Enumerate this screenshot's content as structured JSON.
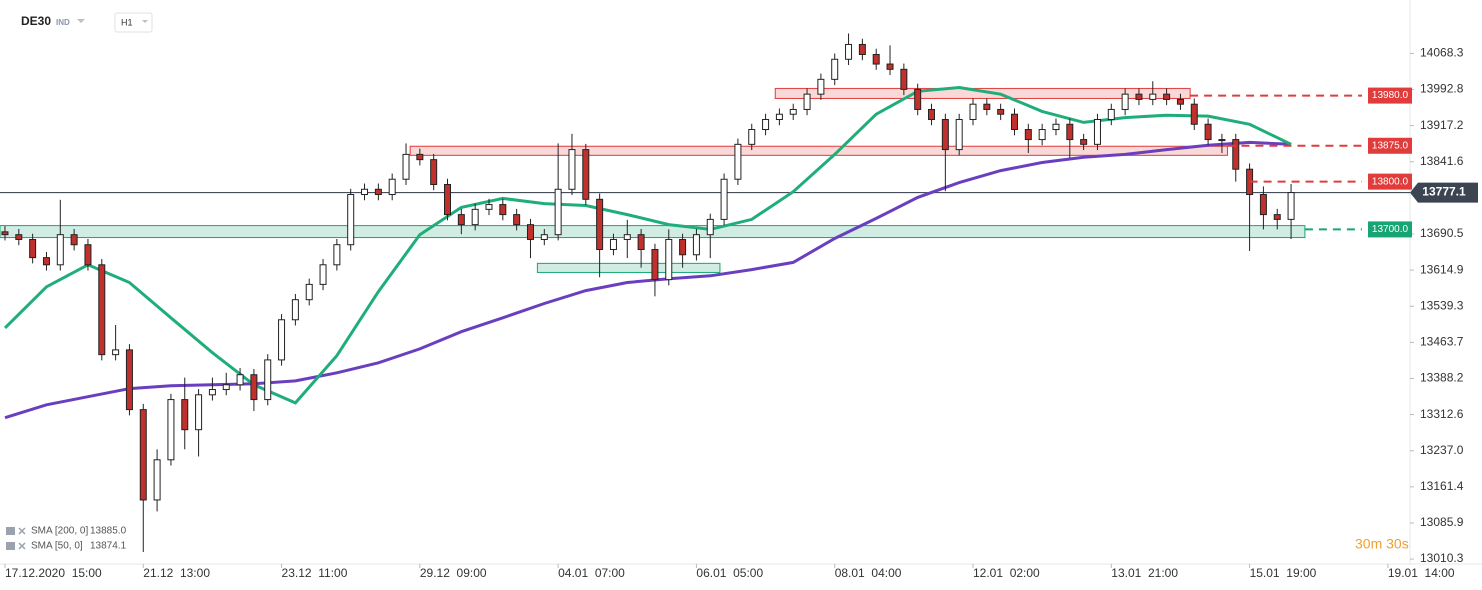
{
  "header": {
    "symbol": "DE30",
    "kind": "IND",
    "interval": "H1"
  },
  "timer": "30m 30s",
  "chart_data": {
    "type": "candlestick",
    "xlim": [
      -0.36,
      101.6
    ],
    "ylim": [
      13000,
      14180
    ],
    "xticks": [
      {
        "value": 0,
        "label": "17.12.2020  15:00"
      },
      {
        "value": 10,
        "label": "21.12  13:00"
      },
      {
        "value": 20,
        "label": "23.12  11:00"
      },
      {
        "value": 30,
        "label": "29.12  09:00"
      },
      {
        "value": 40,
        "label": "04.01  07:00"
      },
      {
        "value": 50,
        "label": "06.01  05:00"
      },
      {
        "value": 60,
        "label": "08.01  04:00"
      },
      {
        "value": 70,
        "label": "12.01  02:00"
      },
      {
        "value": 80,
        "label": "13.01  21:00"
      },
      {
        "value": 90,
        "label": "15.01  19:00"
      },
      {
        "value": 100,
        "label": "19.01  14:00"
      }
    ],
    "yticks": [
      14068.3,
      13992.8,
      13917.2,
      13841.6,
      13690.5,
      13614.9,
      13539.3,
      13463.7,
      13388.2,
      13312.6,
      {
        "value": 13237,
        "label": "13237.0"
      },
      13161.4,
      13085.9,
      13010.3
    ],
    "up_color": "#ffffff",
    "down_color": "#c0302c",
    "open": [
      13695,
      13689,
      13679,
      13641,
      13626,
      13689,
      13668,
      13626,
      13438,
      13448,
      13323,
      13134,
      13218,
      13344,
      13281,
      13354,
      13365,
      13375,
      13396,
      13344,
      13427,
      13511,
      13553,
      13585,
      13626,
      13668,
      13773,
      13784,
      13773,
      13805,
      13857,
      13846,
      13794,
      13731,
      13710,
      13742,
      13752,
      13731,
      13710,
      13679,
      13689,
      13784,
      13867,
      13763,
      13658,
      13679,
      13689,
      13658,
      13595,
      13679,
      13647,
      13689,
      13721,
      13805,
      13878,
      13909,
      13930,
      13941,
      13951,
      13983,
      14014,
      14056,
      14087,
      14066,
      14046,
      14035,
      13993,
      13951,
      13930,
      13867,
      13930,
      13962,
      13951,
      13941,
      13909,
      13888,
      13909,
      13920,
      13888,
      13878,
      13930,
      13951,
      13983,
      13972,
      13983,
      13972,
      13962,
      13920,
      13888,
      13888,
      13826,
      13773,
      13731,
      13721
    ],
    "high": [
      13707,
      13701,
      13691,
      13653,
      13762,
      13701,
      13680,
      13638,
      13500,
      13460,
      13335,
      13240,
      13356,
      13390,
      13366,
      13390,
      13400,
      13410,
      13408,
      13439,
      13523,
      13565,
      13597,
      13638,
      13680,
      13785,
      13796,
      13796,
      13817,
      13880,
      13869,
      13858,
      13806,
      13743,
      13754,
      13764,
      13764,
      13743,
      13722,
      13701,
      13880,
      13900,
      13879,
      13775,
      13691,
      13720,
      13701,
      13670,
      13700,
      13691,
      13701,
      13733,
      13817,
      13890,
      13921,
      13942,
      13953,
      13963,
      13995,
      14026,
      14068,
      14110,
      14099,
      14078,
      14085,
      14047,
      14005,
      13963,
      13942,
      13942,
      13974,
      13974,
      13963,
      13953,
      13921,
      13921,
      13932,
      13932,
      13900,
      13942,
      13963,
      13995,
      13995,
      14010,
      13995,
      13984,
      13974,
      13932,
      13900,
      13900,
      13838,
      13790,
      13743,
      13795
    ],
    "low": [
      13677,
      13667,
      13629,
      13614,
      13614,
      13656,
      13614,
      13426,
      13426,
      13311,
      13025,
      13110,
      13206,
      13240,
      13225,
      13342,
      13353,
      13363,
      13320,
      13332,
      13415,
      13499,
      13541,
      13573,
      13614,
      13656,
      13761,
      13761,
      13761,
      13793,
      13834,
      13782,
      13719,
      13690,
      13698,
      13730,
      13719,
      13698,
      13640,
      13667,
      13677,
      13772,
      13751,
      13600,
      13646,
      13640,
      13620,
      13560,
      13583,
      13620,
      13635,
      13640,
      13709,
      13793,
      13866,
      13897,
      13918,
      13929,
      13939,
      13971,
      14002,
      14044,
      14054,
      14034,
      14023,
      13981,
      13939,
      13918,
      13780,
      13855,
      13918,
      13939,
      13929,
      13897,
      13860,
      13876,
      13897,
      13850,
      13866,
      13866,
      13918,
      13939,
      13960,
      13960,
      13960,
      13950,
      13908,
      13876,
      13860,
      13800,
      13655,
      13700,
      13700,
      13680
    ],
    "close": [
      13689,
      13679,
      13641,
      13626,
      13689,
      13668,
      13626,
      13438,
      13448,
      13323,
      13134,
      13218,
      13344,
      13281,
      13354,
      13365,
      13375,
      13396,
      13344,
      13427,
      13511,
      13553,
      13585,
      13626,
      13668,
      13773,
      13784,
      13773,
      13805,
      13857,
      13846,
      13794,
      13731,
      13710,
      13742,
      13752,
      13731,
      13710,
      13679,
      13689,
      13784,
      13867,
      13763,
      13658,
      13679,
      13689,
      13658,
      13595,
      13679,
      13647,
      13689,
      13721,
      13805,
      13878,
      13909,
      13930,
      13941,
      13951,
      13983,
      14014,
      14056,
      14087,
      14066,
      14046,
      14035,
      13993,
      13951,
      13930,
      13867,
      13930,
      13962,
      13951,
      13941,
      13909,
      13888,
      13909,
      13920,
      13888,
      13878,
      13930,
      13951,
      13983,
      13972,
      13983,
      13972,
      13962,
      13920,
      13888,
      13888,
      13826,
      13773,
      13731,
      13721,
      13777.1
    ],
    "series": [
      {
        "name": "SMA [200, 0]",
        "last_label": "13885.0",
        "color": "#6a3fbf",
        "x": [
          0,
          3,
          6,
          9,
          12,
          15,
          18,
          21,
          24,
          27,
          30,
          33,
          36,
          39,
          42,
          45,
          48,
          51,
          54,
          57,
          60,
          63,
          66,
          69,
          72,
          75,
          78,
          81,
          84,
          87,
          90,
          93
        ],
        "values": [
          13306,
          13333,
          13350,
          13367,
          13373,
          13375,
          13377,
          13383,
          13400,
          13421,
          13450,
          13486,
          13515,
          13545,
          13572,
          13589,
          13597,
          13603,
          13616,
          13631,
          13681,
          13723,
          13767,
          13798,
          13823,
          13840,
          13851,
          13857,
          13867,
          13876,
          13882,
          13878
        ]
      },
      {
        "name": "SMA [50, 0]",
        "last_label": "13874.1",
        "color": "#1fae7a",
        "x": [
          0,
          3,
          6,
          9,
          12,
          15,
          18,
          21,
          24,
          27,
          30,
          33,
          36,
          39,
          42,
          45,
          48,
          51,
          54,
          57,
          60,
          63,
          66,
          69,
          72,
          75,
          78,
          81,
          84,
          87,
          90,
          93
        ],
        "values": [
          13494,
          13580,
          13626,
          13589,
          13515,
          13442,
          13375,
          13337,
          13436,
          13570,
          13689,
          13746,
          13765,
          13754,
          13750,
          13731,
          13710,
          13700,
          13721,
          13779,
          13857,
          13941,
          13989,
          13997,
          13983,
          13947,
          13924,
          13934,
          13939,
          13937,
          13920,
          13878
        ]
      }
    ],
    "zones": [
      {
        "color": "#e03c3c",
        "x": [
          55.7,
          85.7
        ],
        "y": [
          13974,
          13995
        ]
      },
      {
        "color": "#e03c3c",
        "x": [
          29.3,
          88.4
        ],
        "y": [
          13855,
          13874
        ]
      },
      {
        "color": "#17a673",
        "x": [
          -0.36,
          94
        ],
        "y": [
          13683,
          13708
        ]
      },
      {
        "color": "#17a673",
        "x": [
          38.5,
          51.7
        ],
        "y": [
          13610,
          13629
        ]
      }
    ],
    "levels": [
      {
        "value": 13980,
        "label": "13980.0",
        "color": "#e03c3c",
        "x_start": 85.7
      },
      {
        "value": 13875,
        "label": "13875.0",
        "color": "#e03c3c",
        "x_start": 88.4
      },
      {
        "value": 13800,
        "label": "13800.0",
        "color": "#e03c3c",
        "x_start": 90
      },
      {
        "value": 13700,
        "label": "13700.0",
        "color": "#17a673",
        "x_start": 94
      }
    ],
    "last_price": 13777.1
  }
}
